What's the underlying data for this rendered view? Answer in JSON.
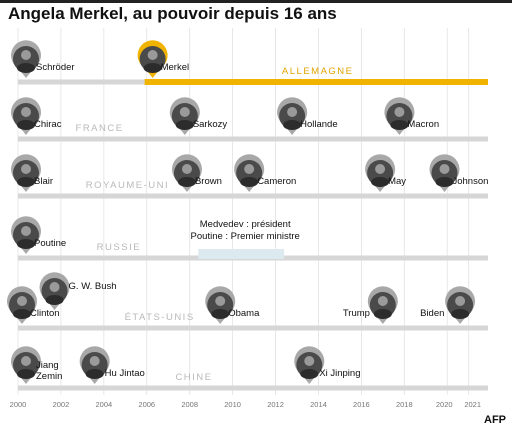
{
  "title": "Angela Merkel, au pouvoir depuis 16 ans",
  "source_label": "AFP",
  "colors": {
    "accent": "#f0b400",
    "bar": "#d6d6d6",
    "pin": "#a8a8a8",
    "grid": "#e2e2e2",
    "mandate": "#dce9ee"
  },
  "chart_data": {
    "type": "timeline",
    "title": "Angela Merkel, au pouvoir depuis 16 ans",
    "x_ticks": [
      "2000",
      "2002",
      "2004",
      "2006",
      "2008",
      "2010",
      "2012",
      "2014",
      "2016",
      "2018",
      "2020",
      "2021"
    ],
    "xlim": [
      2000,
      2021.9
    ],
    "rows": [
      {
        "country": "ALLEMAGNE",
        "highlight": true,
        "leaders": [
          {
            "name": "Schröder",
            "start": 2000,
            "end": 2005.9
          },
          {
            "name": "Merkel",
            "start": 2005.9,
            "end": 2021.9,
            "highlight": true
          }
        ]
      },
      {
        "country": "FRANCE",
        "leaders": [
          {
            "name": "Chirac",
            "start": 2000,
            "end": 2007.4
          },
          {
            "name": "Sarkozy",
            "start": 2007.4,
            "end": 2012.4
          },
          {
            "name": "Hollande",
            "start": 2012.4,
            "end": 2017.4
          },
          {
            "name": "Macron",
            "start": 2017.4,
            "end": 2021.9
          }
        ]
      },
      {
        "country": "ROYAUME-UNI",
        "leaders": [
          {
            "name": "Blair",
            "start": 2000,
            "end": 2007.5
          },
          {
            "name": "Brown",
            "start": 2007.5,
            "end": 2010.4
          },
          {
            "name": "Cameron",
            "start": 2010.4,
            "end": 2016.5
          },
          {
            "name": "May",
            "start": 2016.5,
            "end": 2019.5
          },
          {
            "name": "Johnson",
            "start": 2019.5,
            "end": 2021.9
          }
        ]
      },
      {
        "country": "RUSSIE",
        "note": [
          "Medvedev : président",
          "Poutine : Premier ministre"
        ],
        "note_period": [
          2008.4,
          2012.4
        ],
        "leaders": [
          {
            "name": "Poutine",
            "start": 2000,
            "end": 2021.9
          }
        ]
      },
      {
        "country": "ÉTATS-UNIS",
        "leaders": [
          {
            "name": "Clinton",
            "start": 2000,
            "end": 2001.05
          },
          {
            "name": "G. W. Bush",
            "start": 2001.05,
            "end": 2009.05
          },
          {
            "name": "Obama",
            "start": 2009.05,
            "end": 2017.05
          },
          {
            "name": "Trump",
            "start": 2017.05,
            "end": 2021.05
          },
          {
            "name": "Biden",
            "start": 2021.05,
            "end": 2021.9
          }
        ]
      },
      {
        "country": "CHINE",
        "leaders": [
          {
            "name": "Jiang Zemin",
            "start": 2000,
            "end": 2003.2
          },
          {
            "name": "Hu Jintao",
            "start": 2003.2,
            "end": 2013.2
          },
          {
            "name": "Xi Jinping",
            "start": 2013.2,
            "end": 2021.9
          }
        ]
      }
    ]
  }
}
